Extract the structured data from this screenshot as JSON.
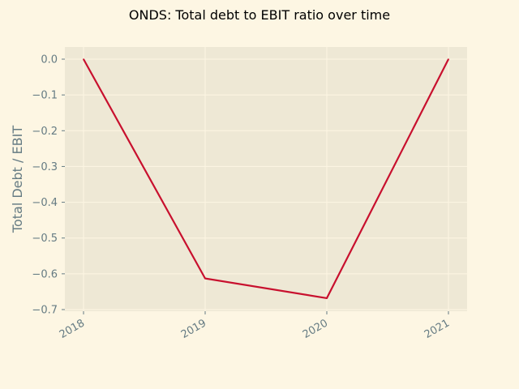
{
  "chart_data": {
    "type": "line",
    "title": "ONDS: Total debt to EBIT ratio over time",
    "xlabel": "",
    "ylabel": "Total Debt / EBIT",
    "x": [
      "2018",
      "2019",
      "2020",
      "2021"
    ],
    "series": [
      {
        "values": [
          0.0,
          -0.613,
          -0.668,
          0.0
        ]
      }
    ],
    "ylim": [
      -0.7,
      0.0
    ],
    "yticks": [
      "0.0",
      "−0.1",
      "−0.2",
      "−0.3",
      "−0.4",
      "−0.5",
      "−0.6",
      "−0.7"
    ],
    "grid": true
  },
  "colors": {
    "background": "#fdf6e3",
    "plot_area": "#eee8d5",
    "grid": "#fdf6e3",
    "line": "#c8102e",
    "tick_text": "#657b83"
  }
}
